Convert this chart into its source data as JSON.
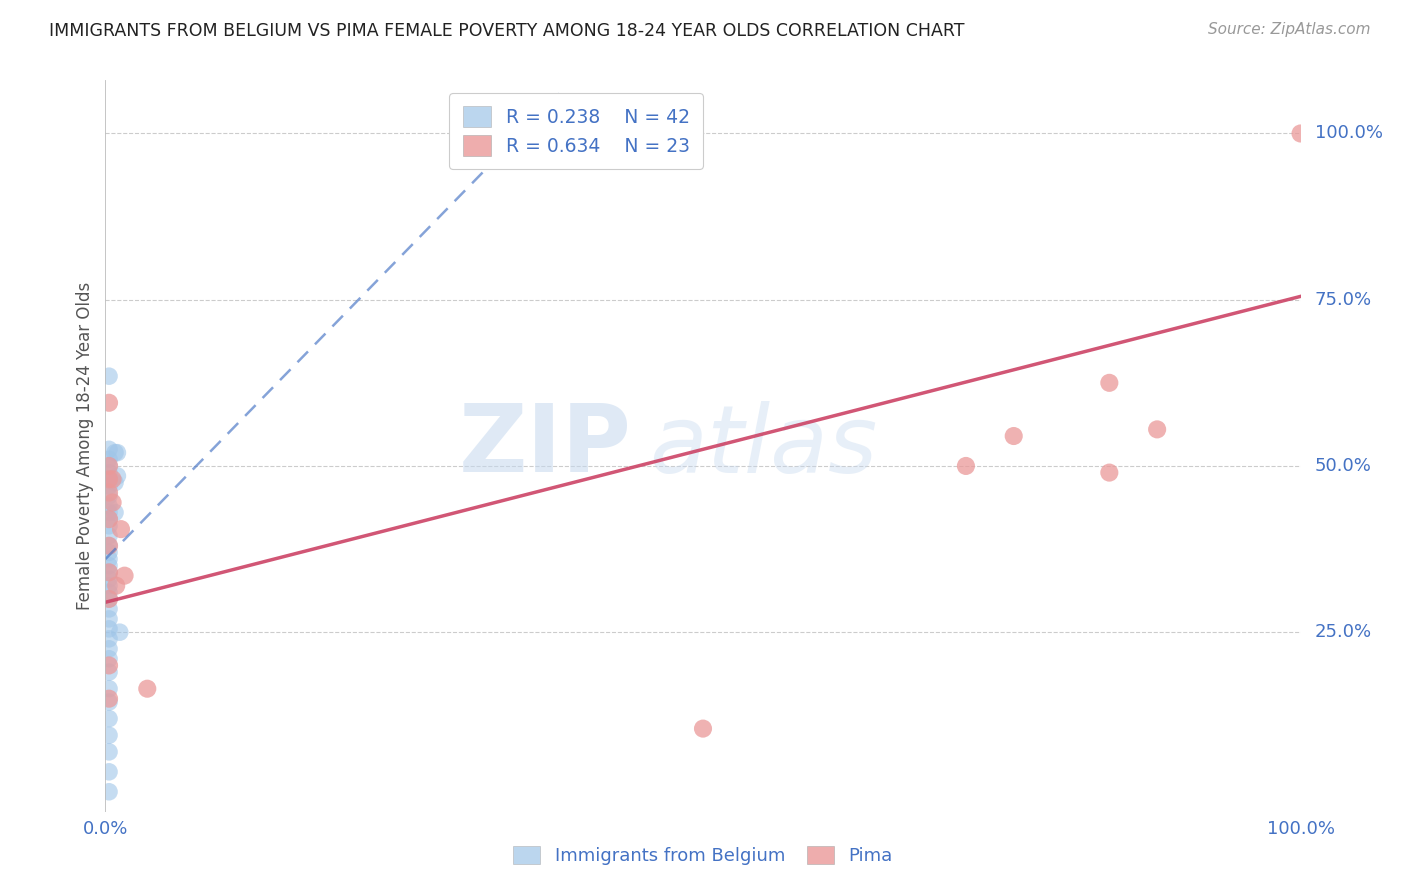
{
  "title": "IMMIGRANTS FROM BELGIUM VS PIMA FEMALE POVERTY AMONG 18-24 YEAR OLDS CORRELATION CHART",
  "source": "Source: ZipAtlas.com",
  "ylabel": "Female Poverty Among 18-24 Year Olds",
  "xlim": [
    0.0,
    1.0
  ],
  "ylim": [
    -0.02,
    1.08
  ],
  "xtick_labels": [
    "0.0%",
    "",
    "",
    "",
    "100.0%"
  ],
  "xtick_values": [
    0.0,
    0.25,
    0.5,
    0.75,
    1.0
  ],
  "ytick_labels": [
    "100.0%",
    "75.0%",
    "50.0%",
    "25.0%"
  ],
  "ytick_values": [
    1.0,
    0.75,
    0.5,
    0.25
  ],
  "legend_r1": "R = 0.238",
  "legend_n1": "N = 42",
  "legend_r2": "R = 0.634",
  "legend_n2": "N = 23",
  "blue_color": "#9fc5e8",
  "pink_color": "#ea9999",
  "blue_line_color": "#4472c4",
  "pink_line_color": "#cc4466",
  "blue_scatter": [
    [
      0.003,
      0.635
    ],
    [
      0.003,
      0.525
    ],
    [
      0.003,
      0.51
    ],
    [
      0.003,
      0.5
    ],
    [
      0.003,
      0.49
    ],
    [
      0.003,
      0.48
    ],
    [
      0.003,
      0.47
    ],
    [
      0.003,
      0.455
    ],
    [
      0.003,
      0.44
    ],
    [
      0.003,
      0.43
    ],
    [
      0.003,
      0.42
    ],
    [
      0.003,
      0.41
    ],
    [
      0.003,
      0.395
    ],
    [
      0.003,
      0.38
    ],
    [
      0.003,
      0.37
    ],
    [
      0.003,
      0.36
    ],
    [
      0.003,
      0.35
    ],
    [
      0.003,
      0.34
    ],
    [
      0.003,
      0.33
    ],
    [
      0.003,
      0.32
    ],
    [
      0.003,
      0.31
    ],
    [
      0.003,
      0.3
    ],
    [
      0.003,
      0.285
    ],
    [
      0.003,
      0.27
    ],
    [
      0.003,
      0.255
    ],
    [
      0.003,
      0.24
    ],
    [
      0.003,
      0.225
    ],
    [
      0.003,
      0.21
    ],
    [
      0.003,
      0.19
    ],
    [
      0.003,
      0.165
    ],
    [
      0.003,
      0.145
    ],
    [
      0.003,
      0.12
    ],
    [
      0.003,
      0.095
    ],
    [
      0.003,
      0.07
    ],
    [
      0.003,
      0.04
    ],
    [
      0.003,
      0.01
    ],
    [
      0.008,
      0.52
    ],
    [
      0.008,
      0.475
    ],
    [
      0.008,
      0.43
    ],
    [
      0.01,
      0.52
    ],
    [
      0.01,
      0.485
    ],
    [
      0.012,
      0.25
    ]
  ],
  "pink_scatter": [
    [
      0.003,
      0.595
    ],
    [
      0.003,
      0.5
    ],
    [
      0.003,
      0.48
    ],
    [
      0.003,
      0.46
    ],
    [
      0.003,
      0.42
    ],
    [
      0.003,
      0.38
    ],
    [
      0.003,
      0.34
    ],
    [
      0.003,
      0.3
    ],
    [
      0.003,
      0.2
    ],
    [
      0.003,
      0.15
    ],
    [
      0.006,
      0.48
    ],
    [
      0.006,
      0.445
    ],
    [
      0.009,
      0.32
    ],
    [
      0.013,
      0.405
    ],
    [
      0.016,
      0.335
    ],
    [
      0.035,
      0.165
    ],
    [
      0.5,
      0.105
    ],
    [
      0.72,
      0.5
    ],
    [
      0.76,
      0.545
    ],
    [
      0.84,
      0.625
    ],
    [
      0.84,
      0.49
    ],
    [
      0.88,
      0.555
    ],
    [
      1.0,
      1.0
    ]
  ],
  "blue_trendline_x": [
    0.0,
    0.38
  ],
  "blue_trendline_y": [
    0.36,
    1.06
  ],
  "pink_trendline_x": [
    0.0,
    1.0
  ],
  "pink_trendline_y": [
    0.295,
    0.755
  ],
  "watermark_line1": "ZIP",
  "watermark_line2": "atlas",
  "background_color": "#ffffff",
  "grid_color": "#cccccc"
}
